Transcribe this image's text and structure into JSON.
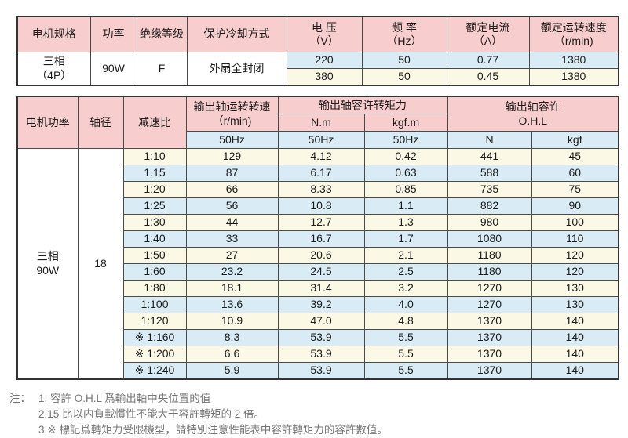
{
  "colors": {
    "header_pink": "#f8cdcd",
    "row_blue": "#d9ecf5",
    "row_cream": "#fbf8e5",
    "border": "#4a4a4a",
    "text": "#1c1c1c",
    "note_text": "#757575"
  },
  "motor_table": {
    "headers": {
      "spec": "电机规格",
      "power": "功率",
      "insulation": "绝缘等级",
      "cooling": "保护冷却方式",
      "voltage_line1": "电 压",
      "voltage_line2": "（V）",
      "freq_line1": "频 率",
      "freq_line2": "（Hz）",
      "current_line1": "额定电流",
      "current_line2": "（A）",
      "speed_line1": "额定运转速度",
      "speed_line2": "（r/min)"
    },
    "spec": {
      "model_line1": "三相",
      "model_line2": "（4P）",
      "power": "90W",
      "insulation": "F",
      "cooling": "外扇全封闭"
    },
    "rows": [
      {
        "voltage": "220",
        "freq": "50",
        "current": "0.77",
        "speed": "1380"
      },
      {
        "voltage": "380",
        "freq": "50",
        "current": "0.45",
        "speed": "1380"
      }
    ]
  },
  "performance_table": {
    "headers": {
      "motor_power": "电机功率",
      "shaft_dia": "轴径",
      "ratio": "减速比",
      "output_speed_line1": "输出轴运转转速",
      "output_speed_line2": "（r/min)",
      "torque_group": "输出轴容许转矩力",
      "torque_nm": "N.m",
      "torque_kgfm": "kgf.m",
      "ohl_line1": "输出轴容许",
      "ohl_line2": "O.H.L",
      "sub_speed": "50Hz",
      "sub_nm": "50Hz",
      "sub_kgfm": "50Hz",
      "sub_n": "N",
      "sub_kgf": "kgf"
    },
    "motor_power_value_line1": "三相",
    "motor_power_value_line2": "90W",
    "shaft_dia_value": "18",
    "rows": [
      [
        "1:10",
        "129",
        "4.12",
        "0.42",
        "441",
        "45"
      ],
      [
        "1.15",
        "87",
        "6.17",
        "0.63",
        "588",
        "60"
      ],
      [
        "1:20",
        "66",
        "8.33",
        "0.85",
        "735",
        "75"
      ],
      [
        "1:25",
        "56",
        "10.8",
        "1.1",
        "882",
        "90"
      ],
      [
        "1:30",
        "44",
        "12.7",
        "1.3",
        "980",
        "100"
      ],
      [
        "1:40",
        "33",
        "16.7",
        "1.7",
        "1080",
        "110"
      ],
      [
        "1:50",
        "27",
        "20.6",
        "2.1",
        "1180",
        "120"
      ],
      [
        "1:60",
        "23.2",
        "24.5",
        "2.5",
        "1180",
        "120"
      ],
      [
        "1:80",
        "18.1",
        "31.4",
        "3.2",
        "1270",
        "130"
      ],
      [
        "1:100",
        "13.6",
        "39.2",
        "4.0",
        "1270",
        "130"
      ],
      [
        "1:120",
        "10.9",
        "47.0",
        "4.8",
        "1370",
        "140"
      ],
      [
        "※ 1:160",
        "8.3",
        "53.9",
        "5.5",
        "1370",
        "140"
      ],
      [
        "※ 1:200",
        "6.6",
        "53.9",
        "5.5",
        "1370",
        "140"
      ],
      [
        "※ 1:240",
        "5.9",
        "53.9",
        "5.5",
        "1370",
        "140"
      ]
    ]
  },
  "notes": {
    "label": "注：",
    "items": [
      "1. 容許 O.H.L 爲輸出軸中央位置的值",
      "2.15 比以内負載慣性不能大于容許轉矩的 2 倍。",
      "3.※ 標記爲轉矩力受限機型，請特別注意性能表中容許轉矩力的容許數值。"
    ]
  }
}
